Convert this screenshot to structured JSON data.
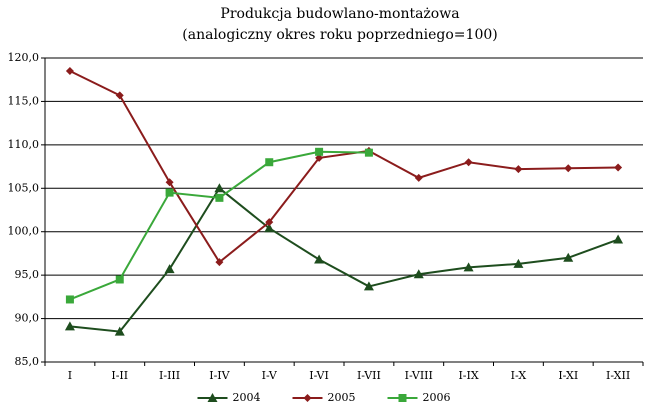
{
  "chart_data": {
    "type": "line",
    "title": [
      "Produkcja budowlano-montażowa",
      "(analogiczny okres roku poprzedniego=100)"
    ],
    "categories": [
      "I",
      "I-II",
      "I-III",
      "I-IV",
      "I-V",
      "I-VI",
      "I-VII",
      "I-VIII",
      "I-IX",
      "I-X",
      "I-XI",
      "I-XII"
    ],
    "series": [
      {
        "name": "2004",
        "color": "#1e4d1e",
        "marker": "triangle",
        "values": [
          89.1,
          88.5,
          95.7,
          105.0,
          100.4,
          96.8,
          93.7,
          95.1,
          95.9,
          96.3,
          97.0,
          99.1
        ]
      },
      {
        "name": "2005",
        "color": "#8b1c1c",
        "marker": "diamond",
        "values": [
          118.5,
          115.7,
          105.7,
          96.5,
          101.1,
          108.5,
          109.3,
          106.2,
          108.0,
          107.2,
          107.3,
          107.4
        ]
      },
      {
        "name": "2006",
        "color": "#3aa83a",
        "marker": "square",
        "values": [
          92.2,
          94.5,
          104.5,
          103.9,
          108.0,
          109.2,
          109.1,
          null,
          null,
          null,
          null,
          null
        ]
      }
    ],
    "ylim": [
      85,
      120
    ],
    "yticks": [
      {
        "value": 85,
        "label": "85,0"
      },
      {
        "value": 90,
        "label": "90,0"
      },
      {
        "value": 95,
        "label": "95,0"
      },
      {
        "value": 100,
        "label": "100,0"
      },
      {
        "value": 105,
        "label": "105,0"
      },
      {
        "value": 110,
        "label": "110,0"
      },
      {
        "value": 115,
        "label": "115,0"
      },
      {
        "value": 120,
        "label": "120,0"
      }
    ],
    "grid": true,
    "legend": "bottom"
  }
}
